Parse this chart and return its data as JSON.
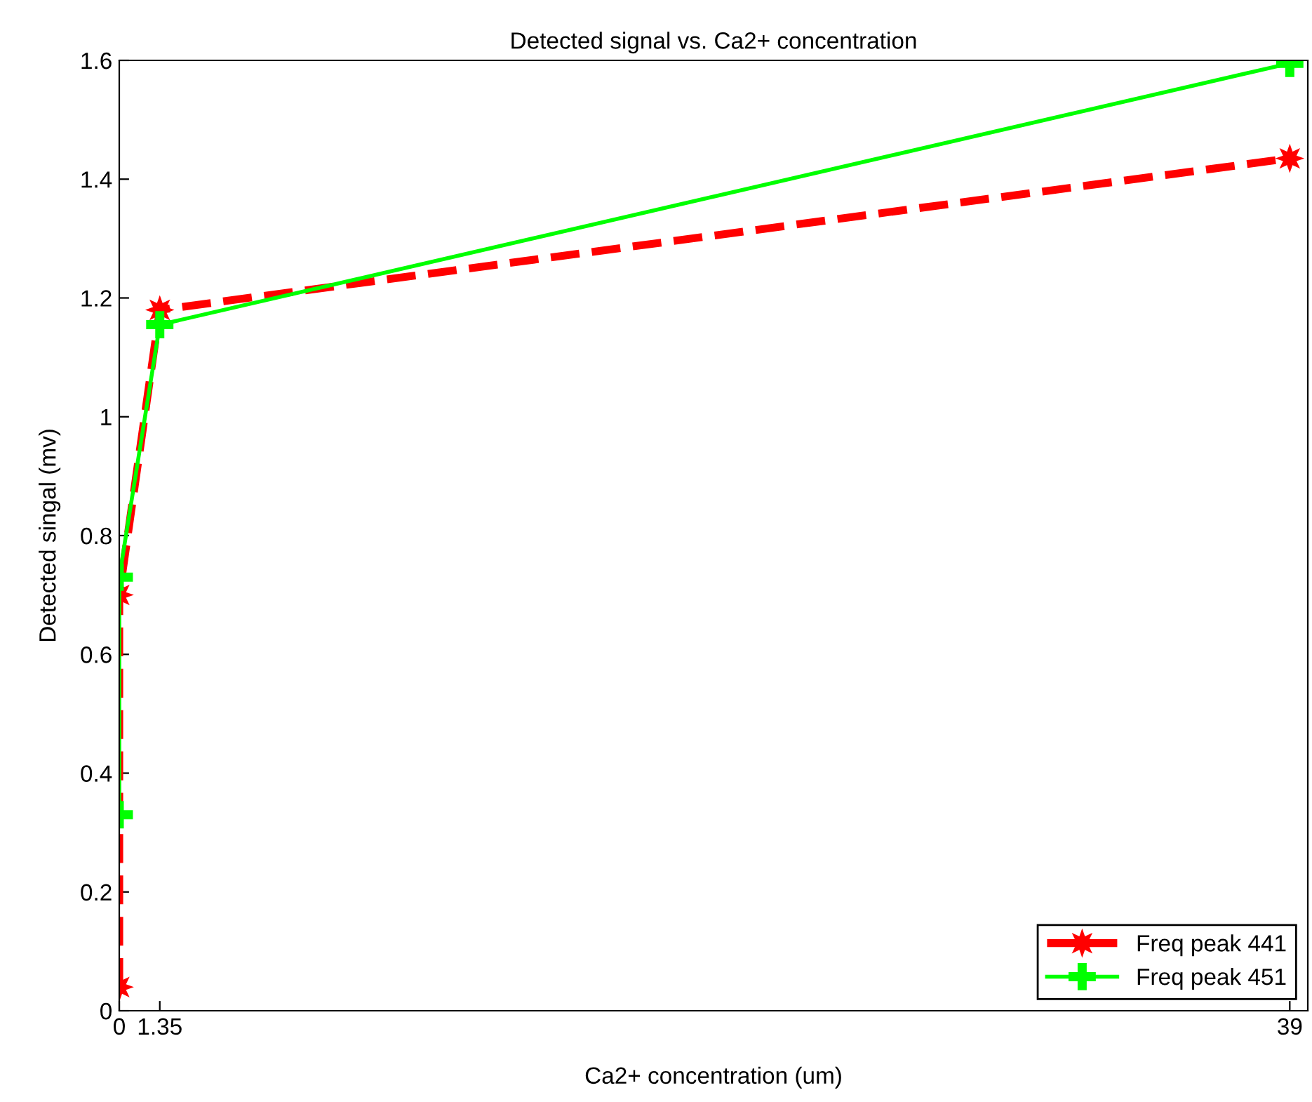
{
  "chart_data": {
    "type": "line",
    "title": "Detected signal vs. Ca2+ concentration",
    "xlabel": "Ca2+ concentration (um)",
    "ylabel": "Detected singal (mv)",
    "x": [
      0,
      0,
      1.35,
      39
    ],
    "series": [
      {
        "name": "Freq peak 441",
        "color": "#ff0000",
        "values": [
          0.04,
          0.7,
          1.18,
          1.435
        ],
        "marker": "star",
        "line_style": "dashed"
      },
      {
        "name": "Freq peak 451",
        "color": "#00ff00",
        "values": [
          0.33,
          0.73,
          1.155,
          1.595
        ],
        "marker": "cross",
        "line_style": "solid"
      }
    ],
    "xlim": [
      0,
      39.6
    ],
    "xticks": [
      0,
      1.35,
      39
    ],
    "ylim": [
      0,
      1.6
    ],
    "yticks": [
      0,
      0.2,
      0.4,
      0.6,
      0.8,
      1,
      1.2,
      1.4,
      1.6
    ],
    "grid": false,
    "legend": "bottom right"
  }
}
